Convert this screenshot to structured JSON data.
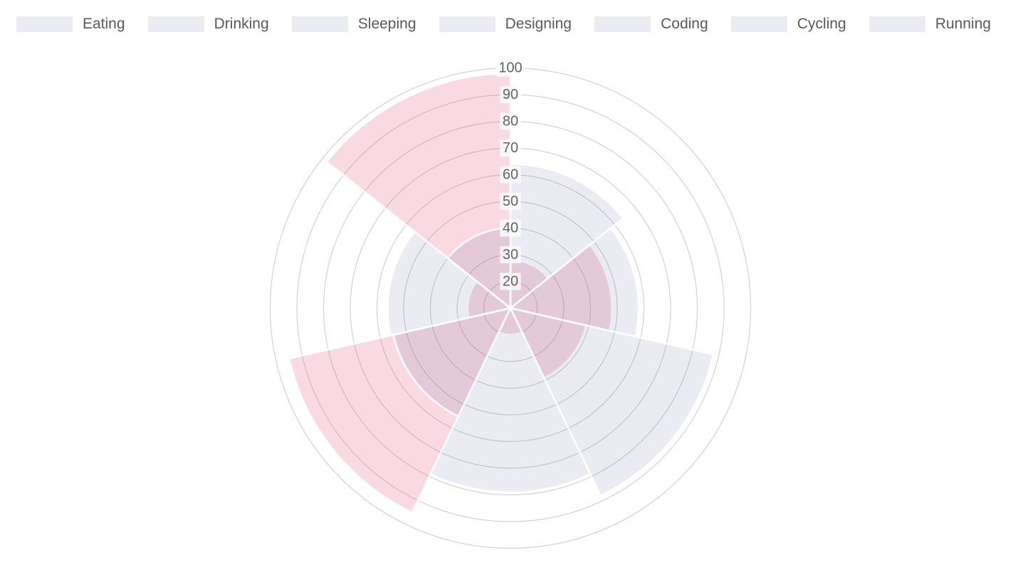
{
  "chart_data": {
    "type": "polar_area",
    "categories": [
      "Eating",
      "Drinking",
      "Sleeping",
      "Designing",
      "Coding",
      "Cycling",
      "Running"
    ],
    "series": [
      {
        "name": "lavender",
        "color": "rgba(95,98,160,0.13)",
        "values": [
          64,
          58,
          88,
          79,
          55,
          56,
          40
        ]
      },
      {
        "name": "pink",
        "color": "rgba(226,65,112,0.2)",
        "values": [
          28,
          48,
          39,
          20,
          95,
          26,
          98
        ]
      }
    ],
    "scale": {
      "min": 10,
      "max": 100,
      "step": 10,
      "ticks": [
        20,
        30,
        40,
        50,
        60,
        70,
        80,
        90,
        100
      ]
    },
    "grid": true,
    "legend_position": "top",
    "start_angle_deg": 0,
    "direction": "clockwise",
    "title": "",
    "xlabel": "",
    "ylabel": ""
  },
  "styles": {
    "grid_color": "#D2D2D4",
    "tick_color": "#636363",
    "tick_backdrop": "rgba(255,255,255,0.75)",
    "wedge_border": "#ffffff",
    "legend_text_color": "#58595b"
  }
}
